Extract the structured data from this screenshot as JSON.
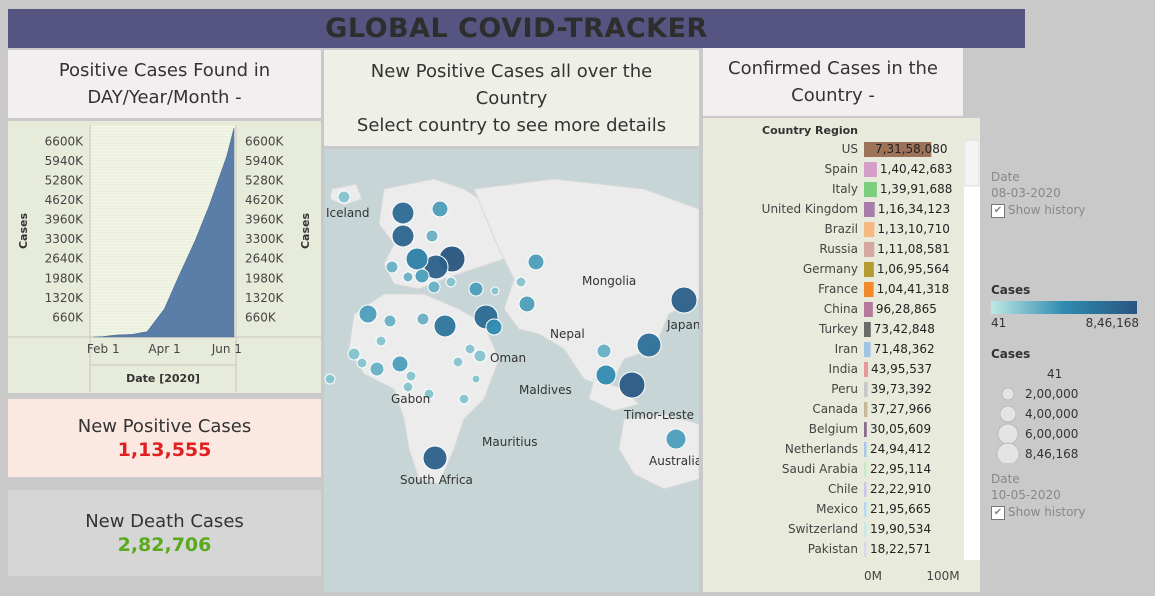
{
  "header": {
    "title": "GLOBAL COVID-TRACKER"
  },
  "panels": {
    "area_title_l1": "Positive Cases Found in",
    "area_title_l2": "DAY/Year/Month -",
    "map_title_l1": "New Positive Cases all over the",
    "map_title_l2": "Country",
    "map_title_l3": "Select country to see more details",
    "bar_title_l1": "Confirmed Cases in the",
    "bar_title_l2": "Country -"
  },
  "kpis": {
    "positive_label": "New Positive Cases",
    "positive_value": "1,13,555",
    "death_label": "New Death Cases",
    "death_value": "2,82,706",
    "positive_color": "#e02020",
    "death_color": "#5aaa1e"
  },
  "legend": {
    "date1_label": "Date",
    "date1_value": "08-03-2020",
    "show_history_1": "Show history",
    "cases_color_title": "Cases",
    "cases_color_min": "41",
    "cases_color_max": "8,46,168",
    "cases_size_title": "Cases",
    "size_entries": [
      "41",
      "2,00,000",
      "4,00,000",
      "6,00,000",
      "8,46,168"
    ],
    "date2_label": "Date",
    "date2_value": "10-05-2020",
    "show_history_2": "Show history"
  },
  "map": {
    "labels": [
      "Iceland",
      "Mongolia",
      "Japan",
      "Nepal",
      "Oman",
      "Maldives",
      "Gabon",
      "Timor-Leste",
      "Mauritius",
      "Australia",
      "South Africa"
    ]
  },
  "chart_data": [
    {
      "type": "area",
      "title": "Positive Cases Found in DAY/Year/Month -",
      "xlabel": "Date [2020]",
      "ylabel": "Cases",
      "x_ticks": [
        "Feb 1",
        "Apr 1",
        "Jun 1"
      ],
      "y_ticks": [
        "660K",
        "1320K",
        "1980K",
        "2640K",
        "3300K",
        "3960K",
        "4620K",
        "5280K",
        "5940K",
        "6600K"
      ],
      "x": [
        "Jan 22",
        "Feb 1",
        "Feb 15",
        "Mar 1",
        "Mar 15",
        "Apr 1",
        "Apr 15",
        "May 1",
        "May 15",
        "Jun 1",
        "Jun 8"
      ],
      "values": [
        0,
        12,
        70,
        90,
        180,
        950,
        2050,
        3250,
        4450,
        6100,
        7050
      ],
      "y_unit": "K",
      "ylim": [
        0,
        7150
      ],
      "color": "#5b7ea8"
    },
    {
      "type": "bar",
      "title": "Confirmed Cases in the Country -",
      "header": "Country Region",
      "categories": [
        "US",
        "Spain",
        "Italy",
        "United Kingdom",
        "Brazil",
        "Russia",
        "Germany",
        "France",
        "China",
        "Turkey",
        "Iran",
        "India",
        "Peru",
        "Canada",
        "Belgium",
        "Netherlands",
        "Saudi Arabia",
        "Chile",
        "Mexico",
        "Switzerland",
        "Pakistan"
      ],
      "labels": [
        "7,31,58,080",
        "1,40,42,683",
        "1,39,91,688",
        "1,16,34,123",
        "1,13,10,710",
        "1,11,08,581",
        "1,06,95,564",
        "1,04,41,318",
        "96,28,865",
        "73,42,848",
        "71,48,362",
        "43,95,537",
        "39,73,392",
        "37,27,966",
        "30,05,609",
        "24,94,412",
        "22,95,114",
        "22,22,910",
        "21,95,665",
        "19,90,534",
        "18,22,571"
      ],
      "values": [
        73158080,
        14042683,
        13991688,
        11634123,
        11310710,
        11108581,
        10695564,
        10441318,
        9628865,
        7342848,
        7148362,
        4395537,
        3973392,
        3727966,
        3005609,
        2494412,
        2295114,
        2222910,
        2195665,
        1990534,
        1822571
      ],
      "colors": [
        "#9c7258",
        "#d59ec8",
        "#7ccd7c",
        "#a87ca8",
        "#f5b880",
        "#d4a8a0",
        "#b39a35",
        "#f18a2d",
        "#b5799d",
        "#6a6a6a",
        "#a0c4e4",
        "#e89898",
        "#c8c8c8",
        "#c8b898",
        "#8c6c8c",
        "#a8c8e8",
        "#c8e8c8",
        "#c8c8e8",
        "#b8d8f8",
        "#c8e8e8",
        "#d8d8e8"
      ],
      "x_ticks": [
        "0M",
        "100M"
      ],
      "xlim": [
        0,
        100000000
      ]
    }
  ],
  "bubbles": [
    {
      "x": 20,
      "y": 48,
      "r": 6,
      "v": 0.2
    },
    {
      "x": 79,
      "y": 64,
      "r": 11,
      "v": 0.8
    },
    {
      "x": 116,
      "y": 60,
      "r": 8,
      "v": 0.4
    },
    {
      "x": 79,
      "y": 87,
      "r": 11,
      "v": 0.85
    },
    {
      "x": 108,
      "y": 87,
      "r": 6,
      "v": 0.3
    },
    {
      "x": 128,
      "y": 110,
      "r": 13,
      "v": 1.0
    },
    {
      "x": 112,
      "y": 118,
      "r": 12,
      "v": 0.9
    },
    {
      "x": 93,
      "y": 110,
      "r": 11,
      "v": 0.6
    },
    {
      "x": 98,
      "y": 127,
      "r": 7,
      "v": 0.4
    },
    {
      "x": 110,
      "y": 138,
      "r": 6,
      "v": 0.3
    },
    {
      "x": 84,
      "y": 128,
      "r": 5,
      "v": 0.3
    },
    {
      "x": 68,
      "y": 118,
      "r": 6,
      "v": 0.3
    },
    {
      "x": 127,
      "y": 133,
      "r": 5,
      "v": 0.2
    },
    {
      "x": 152,
      "y": 140,
      "r": 7,
      "v": 0.4
    },
    {
      "x": 212,
      "y": 113,
      "r": 8,
      "v": 0.4
    },
    {
      "x": 197,
      "y": 133,
      "r": 5,
      "v": 0.2
    },
    {
      "x": 171,
      "y": 142,
      "r": 4,
      "v": 0.2
    },
    {
      "x": 203,
      "y": 155,
      "r": 8,
      "v": 0.4
    },
    {
      "x": 162,
      "y": 168,
      "r": 12,
      "v": 0.8
    },
    {
      "x": 170,
      "y": 178,
      "r": 8,
      "v": 0.5
    },
    {
      "x": 121,
      "y": 177,
      "r": 11,
      "v": 0.7
    },
    {
      "x": 99,
      "y": 170,
      "r": 6,
      "v": 0.3
    },
    {
      "x": 44,
      "y": 165,
      "r": 9,
      "v": 0.4
    },
    {
      "x": 66,
      "y": 172,
      "r": 6,
      "v": 0.3
    },
    {
      "x": 57,
      "y": 192,
      "r": 5,
      "v": 0.2
    },
    {
      "x": 30,
      "y": 205,
      "r": 6,
      "v": 0.2
    },
    {
      "x": 38,
      "y": 214,
      "r": 5,
      "v": 0.2
    },
    {
      "x": 53,
      "y": 220,
      "r": 7,
      "v": 0.3
    },
    {
      "x": 76,
      "y": 215,
      "r": 8,
      "v": 0.4
    },
    {
      "x": 87,
      "y": 227,
      "r": 5,
      "v": 0.2
    },
    {
      "x": 84,
      "y": 238,
      "r": 5,
      "v": 0.2
    },
    {
      "x": 105,
      "y": 245,
      "r": 5,
      "v": 0.2
    },
    {
      "x": 146,
      "y": 200,
      "r": 5,
      "v": 0.2
    },
    {
      "x": 156,
      "y": 207,
      "r": 6,
      "v": 0.2
    },
    {
      "x": 134,
      "y": 213,
      "r": 5,
      "v": 0.2
    },
    {
      "x": 152,
      "y": 230,
      "r": 4,
      "v": 0.2
    },
    {
      "x": 140,
      "y": 250,
      "r": 5,
      "v": 0.2
    },
    {
      "x": 280,
      "y": 202,
      "r": 7,
      "v": 0.3
    },
    {
      "x": 325,
      "y": 196,
      "r": 12,
      "v": 0.75
    },
    {
      "x": 282,
      "y": 226,
      "r": 10,
      "v": 0.5
    },
    {
      "x": 308,
      "y": 236,
      "r": 13,
      "v": 0.95
    },
    {
      "x": 360,
      "y": 151,
      "r": 13,
      "v": 0.9
    },
    {
      "x": 352,
      "y": 290,
      "r": 10,
      "v": 0.4
    },
    {
      "x": 111,
      "y": 309,
      "r": 12,
      "v": 0.9
    },
    {
      "x": 6,
      "y": 230,
      "r": 5,
      "v": 0.2
    }
  ]
}
